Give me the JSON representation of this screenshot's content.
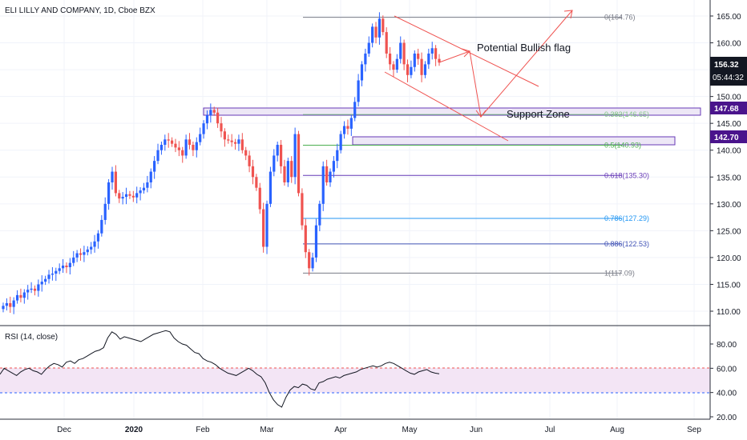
{
  "header": {
    "title": "ELI LILLY AND COMPANY, 1D, Cboe BZX"
  },
  "annotations": {
    "flag_text": "Potential Bullish flag",
    "support_text": "Support Zone"
  },
  "price_axis": {
    "ticks": [
      "165.00",
      "160.00",
      "155.00",
      "150.00",
      "145.00",
      "140.00",
      "135.00",
      "130.00",
      "125.00",
      "120.00",
      "115.00",
      "110.00"
    ],
    "tick_values": [
      165,
      160,
      155,
      150,
      145,
      140,
      135,
      130,
      125,
      120,
      115,
      110
    ],
    "current_price": "156.32",
    "countdown": "05:44:32",
    "zone_top_label": "147.68",
    "zone_bottom_label": "142.70"
  },
  "time_axis": {
    "labels": [
      "Dec",
      "2020",
      "Feb",
      "Mar",
      "Apr",
      "May",
      "Jun",
      "Jul",
      "Aug",
      "Sep"
    ]
  },
  "fib_levels": [
    {
      "label": "0(164.76)",
      "value": 164.76,
      "color": "#787b86"
    },
    {
      "label": "0.382(146.65)",
      "value": 146.65,
      "color": "#81c784"
    },
    {
      "label": "0.5(140.93)",
      "value": 140.93,
      "color": "#4caf50"
    },
    {
      "label": "0.618(135.30)",
      "value": 135.3,
      "color": "#673ab7"
    },
    {
      "label": "0.786(127.29)",
      "value": 127.29,
      "color": "#2196f3"
    },
    {
      "label": "0.886(122.53)",
      "value": 122.53,
      "color": "#3f51b5"
    },
    {
      "label": "1(117.09)",
      "value": 117.09,
      "color": "#787b86"
    }
  ],
  "rsi": {
    "title": "RSI (14, close)",
    "ticks": [
      "80.00",
      "60.00",
      "40.00",
      "20.00"
    ],
    "tick_values": [
      80,
      60,
      40,
      20
    ],
    "upper_band": 60,
    "lower_band": 40
  },
  "colors": {
    "up": "#2962ff",
    "down": "#ef5350",
    "zone_fill": "#ede7f6",
    "zone_border": "#673ab7",
    "arrow": "#ef5350",
    "label_bg": "#4a148c"
  },
  "chart_data": {
    "type": "candlestick",
    "title": "ELI LILLY AND COMPANY, 1D, Cboe BZX",
    "ylim": [
      108,
      167
    ],
    "close_series": [
      111,
      111.5,
      110.8,
      112,
      113,
      112.5,
      113.5,
      114,
      114.2,
      113.8,
      115,
      115.5,
      116,
      116.8,
      117,
      117.5,
      118,
      118.5,
      118.2,
      119,
      120,
      120.8,
      120.5,
      121,
      121.5,
      122,
      123,
      124.5,
      127,
      130,
      134,
      136,
      132,
      131,
      131.3,
      131.8,
      131.5,
      131.2,
      132,
      132.5,
      133,
      134,
      136,
      138,
      140,
      141,
      142,
      141.8,
      141.2,
      140.5,
      140,
      139,
      142,
      141,
      140,
      141.5,
      143,
      145,
      146.5,
      147.5,
      147,
      145,
      143.5,
      142,
      141.8,
      141.5,
      141.2,
      142,
      140,
      139,
      137,
      135,
      133,
      129,
      122,
      130,
      136,
      139,
      141,
      137,
      134,
      138,
      135,
      143,
      132,
      126,
      121,
      118,
      120,
      126,
      130,
      137,
      134,
      136,
      138,
      140,
      143,
      144.5,
      144,
      146,
      149,
      153,
      156,
      158,
      160,
      163,
      161,
      164.5,
      162,
      158,
      156,
      155,
      157,
      160,
      156,
      154,
      155.5,
      158,
      157,
      154,
      156,
      158,
      159,
      157,
      156.32
    ],
    "rsi_series": [
      55,
      60,
      58,
      56,
      54,
      57,
      59,
      60,
      58,
      57,
      55,
      59,
      62,
      64,
      63,
      61,
      65,
      66,
      64,
      67,
      68,
      70,
      72,
      74,
      75,
      77,
      85,
      90,
      88,
      84,
      86,
      85,
      84,
      83,
      82,
      84,
      86,
      88,
      89,
      90,
      91,
      90,
      85,
      82,
      80,
      79,
      76,
      73,
      72,
      68,
      66,
      65,
      63,
      60,
      58,
      56,
      55,
      54,
      56,
      58,
      60,
      58,
      55,
      53,
      48,
      40,
      34,
      30,
      28,
      36,
      42,
      45,
      44,
      47,
      46,
      43,
      42,
      48,
      49,
      51,
      52,
      53,
      52,
      54,
      55,
      56,
      57,
      59,
      60,
      61,
      62,
      61,
      62,
      64,
      65,
      64,
      62,
      60,
      58,
      56,
      55,
      57,
      58,
      59,
      57,
      56,
      55.5
    ],
    "fib_levels": [
      164.76,
      146.65,
      140.93,
      135.3,
      127.29,
      122.53,
      117.09
    ],
    "support_zone": [
      142.7,
      147.68
    ],
    "last_price": 156.32
  }
}
